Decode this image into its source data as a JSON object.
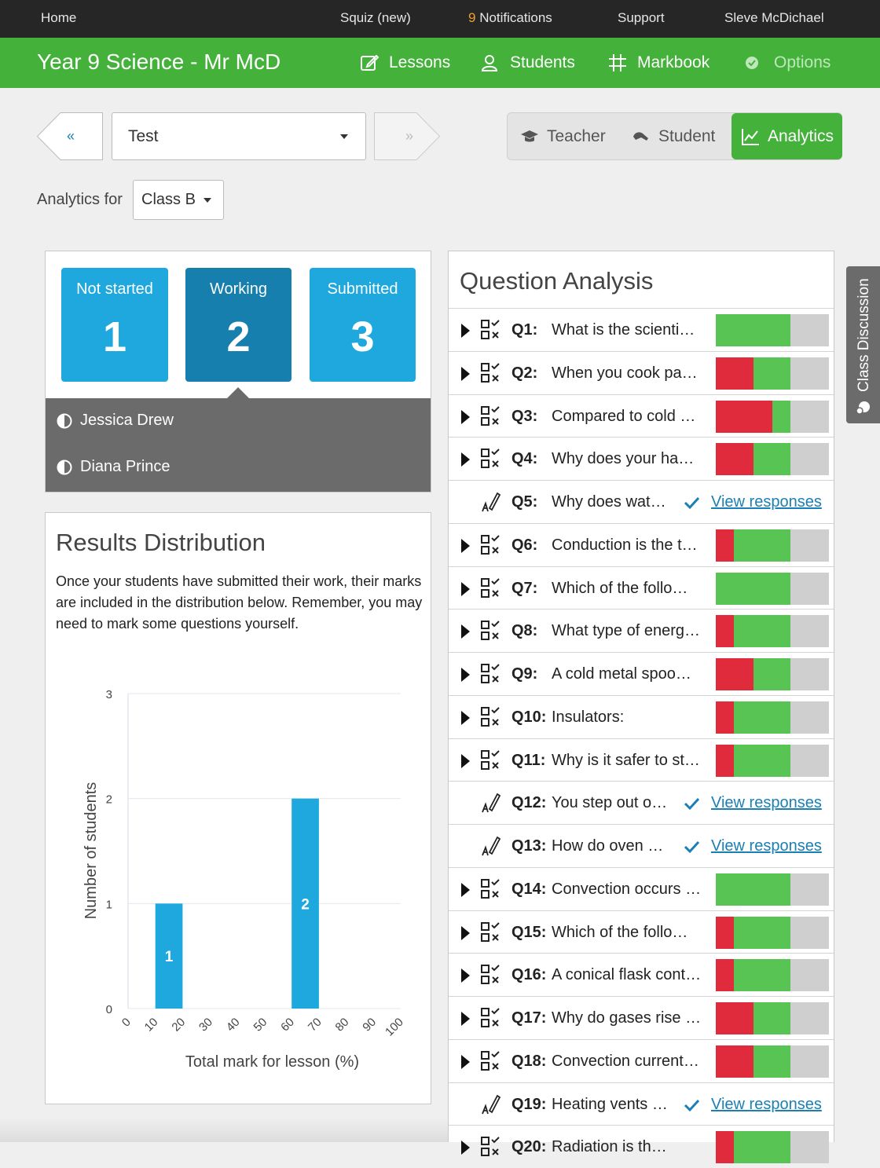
{
  "topbar": {
    "home": "Home",
    "squiz": "Squiz (new)",
    "notifications_count": "9",
    "notifications_label": "Notifications",
    "support": "Support",
    "user": "Sleve McDichael"
  },
  "header": {
    "course_title": "Year 9 Science - Mr McD",
    "nav": {
      "lessons": "Lessons",
      "students": "Students",
      "markbook": "Markbook",
      "options": "Options"
    }
  },
  "controls": {
    "prev_label": "«",
    "next_label": "»",
    "lesson_select": "Test",
    "modes": {
      "teacher": "Teacher",
      "student": "Student",
      "analytics": "Analytics"
    },
    "analytics_for_label": "Analytics for",
    "class_select": "Class B"
  },
  "status": {
    "not_started": {
      "label": "Not started",
      "count": "1"
    },
    "working": {
      "label": "Working",
      "count": "2"
    },
    "submitted": {
      "label": "Submitted",
      "count": "3"
    },
    "working_students": [
      "Jessica Drew",
      "Diana Prince"
    ]
  },
  "results": {
    "title": "Results Distribution",
    "description": "Once your students have submitted their work, their marks are included in the distribution below. Remember, you may need to mark some questions yourself."
  },
  "chart_data": {
    "type": "bar",
    "xlabel": "Total mark for lesson (%)",
    "ylabel": "Number of students",
    "x_ticks": [
      "0",
      "10",
      "20",
      "30",
      "40",
      "50",
      "60",
      "70",
      "80",
      "90",
      "100"
    ],
    "y_ticks": [
      "0",
      "1",
      "2",
      "3"
    ],
    "ylim": [
      0,
      3
    ],
    "xlim": [
      0,
      100
    ],
    "bins": [
      {
        "from": 10,
        "to": 20,
        "value": 1,
        "label": "1"
      },
      {
        "from": 60,
        "to": 70,
        "value": 2,
        "label": "2"
      }
    ],
    "grid": true,
    "bar_color": "#1ea8de"
  },
  "question_analysis": {
    "title": "Question Analysis",
    "view_label": "View responses",
    "questions": [
      {
        "num": "Q1:",
        "text": "What is the scienti…",
        "type": "quiz",
        "red": 0,
        "green": 0.66,
        "grey": 0.34
      },
      {
        "num": "Q2:",
        "text": "When you cook pa…",
        "type": "quiz",
        "red": 0.33,
        "green": 0.33,
        "grey": 0.34
      },
      {
        "num": "Q3:",
        "text": "Compared to cold …",
        "type": "quiz",
        "red": 0.5,
        "green": 0.16,
        "grey": 0.34
      },
      {
        "num": "Q4:",
        "text": "Why does your ha…",
        "type": "quiz",
        "red": 0.33,
        "green": 0.33,
        "grey": 0.34
      },
      {
        "num": "Q5:",
        "text": "Why does wat…",
        "type": "written"
      },
      {
        "num": "Q6:",
        "text": "Conduction is the t…",
        "type": "quiz",
        "red": 0.16,
        "green": 0.5,
        "grey": 0.34
      },
      {
        "num": "Q7:",
        "text": "Which of the follo…",
        "type": "quiz",
        "red": 0,
        "green": 0.66,
        "grey": 0.34
      },
      {
        "num": "Q8:",
        "text": "What type of energ…",
        "type": "quiz",
        "red": 0.16,
        "green": 0.5,
        "grey": 0.34
      },
      {
        "num": "Q9:",
        "text": "A cold metal spoo…",
        "type": "quiz",
        "red": 0.33,
        "green": 0.33,
        "grey": 0.34
      },
      {
        "num": "Q10:",
        "text": "Insulators:",
        "type": "quiz",
        "red": 0.16,
        "green": 0.5,
        "grey": 0.34
      },
      {
        "num": "Q11:",
        "text": "Why is it safer to st…",
        "type": "quiz",
        "red": 0.16,
        "green": 0.5,
        "grey": 0.34
      },
      {
        "num": "Q12:",
        "text": "You step out o…",
        "type": "written"
      },
      {
        "num": "Q13:",
        "text": "How do oven …",
        "type": "written"
      },
      {
        "num": "Q14:",
        "text": "Convection occurs …",
        "type": "quiz",
        "red": 0,
        "green": 0.66,
        "grey": 0.34
      },
      {
        "num": "Q15:",
        "text": "Which of the follo…",
        "type": "quiz",
        "red": 0.16,
        "green": 0.5,
        "grey": 0.34
      },
      {
        "num": "Q16:",
        "text": "A conical flask cont…",
        "type": "quiz",
        "red": 0.16,
        "green": 0.5,
        "grey": 0.34
      },
      {
        "num": "Q17:",
        "text": "Why do gases rise …",
        "type": "quiz",
        "red": 0.33,
        "green": 0.33,
        "grey": 0.34
      },
      {
        "num": "Q18:",
        "text": "Convection current…",
        "type": "quiz",
        "red": 0.33,
        "green": 0.33,
        "grey": 0.34
      },
      {
        "num": "Q19:",
        "text": "Heating vents …",
        "type": "written"
      },
      {
        "num": "Q20:",
        "text": "Radiation is th…",
        "type": "quiz",
        "red": 0.16,
        "green": 0.5,
        "grey": 0.34
      }
    ]
  },
  "side_tab": {
    "label": "Class Discussion"
  },
  "colors": {
    "brand_green": "#43b13a",
    "stat_blue": "#1ea8de",
    "stat_blue_active": "#167fad",
    "incorrect": "#e02b3c",
    "correct": "#57c454",
    "unanswered": "#cfcfcf",
    "link": "#1a7fb5"
  },
  "icons": {
    "lessons": "edit-square-icon",
    "students": "users-icon",
    "markbook": "grid-icon",
    "options": "cog-icon",
    "teacher": "graduation-cap-icon",
    "student": "student-icon",
    "analytics": "line-chart-icon",
    "working_status": "half-circle-icon",
    "quiz_question": "checklist-icon",
    "written_question": "pen-icon",
    "marked": "check-icon",
    "discussion": "chat-bubble-icon"
  }
}
